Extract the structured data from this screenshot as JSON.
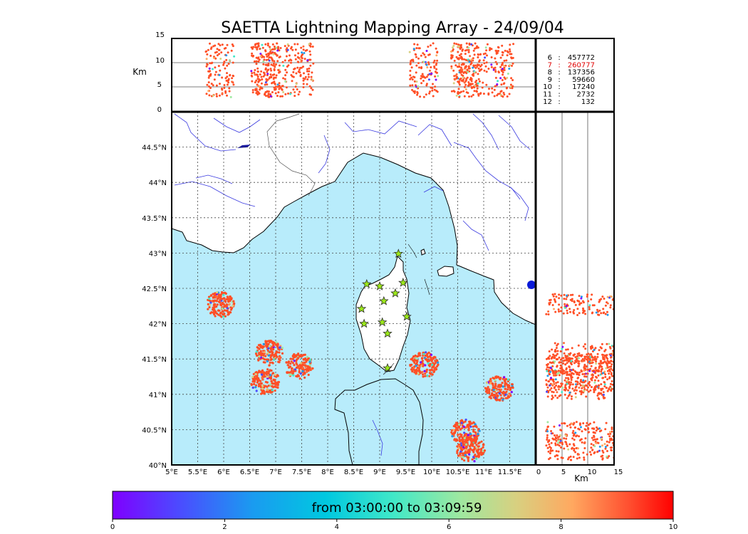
{
  "title": "SAETTA Lightning Mapping Array - 24/09/04",
  "colors": {
    "sea": "#b8ecfb",
    "land": "#ffffff",
    "river": "#3a3ae0",
    "coast": "#000000",
    "grid": "#555555",
    "station_fill": "#9be81a",
    "highlight_count": "#e00000",
    "dominant_source": "#ff4f26"
  },
  "chart_data": {
    "type": "scatter",
    "description_of_panels": [
      "altitude-vs-longitude",
      "plan-view-map",
      "altitude-vs-latitude"
    ],
    "top_panel": {
      "ylabel": "Km",
      "ylim": [
        0,
        15
      ],
      "yticks": [
        "0",
        "5",
        "10",
        "15"
      ],
      "reference_lines_km": [
        5,
        10
      ]
    },
    "map": {
      "lon_range": [
        5.0,
        12.0
      ],
      "lat_range": [
        40.0,
        45.0
      ],
      "xtick_labels": [
        "5°E",
        "5.5°E",
        "6°E",
        "6.5°E",
        "7°E",
        "7.5°E",
        "8°E",
        "8.5°E",
        "9°E",
        "9.5°E",
        "10°E",
        "10.5°E",
        "11°E",
        "11.5°E"
      ],
      "ytick_labels": [
        "40°N",
        "40.5°N",
        "41°N",
        "41.5°N",
        "42°N",
        "42.5°N",
        "43°N",
        "43.5°N",
        "44°N",
        "44.5°N"
      ],
      "grid": "dotted",
      "stations": [
        {
          "lon": 9.36,
          "lat": 42.99
        },
        {
          "lon": 8.75,
          "lat": 42.56
        },
        {
          "lon": 9.0,
          "lat": 42.53
        },
        {
          "lon": 9.45,
          "lat": 42.58
        },
        {
          "lon": 9.3,
          "lat": 42.43
        },
        {
          "lon": 9.08,
          "lat": 42.32
        },
        {
          "lon": 8.65,
          "lat": 42.21
        },
        {
          "lon": 9.52,
          "lat": 42.1
        },
        {
          "lon": 8.7,
          "lat": 42.0
        },
        {
          "lon": 9.05,
          "lat": 42.02
        },
        {
          "lon": 9.15,
          "lat": 41.86
        },
        {
          "lon": 9.15,
          "lat": 41.37
        }
      ],
      "storm_cells": [
        {
          "lon": 5.93,
          "lat": 42.27
        },
        {
          "lon": 6.88,
          "lat": 41.58
        },
        {
          "lon": 7.45,
          "lat": 41.4
        },
        {
          "lon": 9.85,
          "lat": 41.42
        },
        {
          "lon": 10.65,
          "lat": 40.46
        },
        {
          "lon": 11.3,
          "lat": 41.08
        },
        {
          "lon": 6.8,
          "lat": 41.18
        },
        {
          "lon": 10.75,
          "lat": 40.22
        }
      ]
    },
    "side_panel": {
      "xlabel": "Km",
      "xlim": [
        0,
        15
      ],
      "xticks": [
        "0",
        "5",
        "10",
        "15"
      ],
      "reference_lines_km": [
        5,
        10
      ]
    },
    "station_counts": [
      {
        "stations": "6",
        "count": "457772",
        "highlight": false
      },
      {
        "stations": "7",
        "count": "260777",
        "highlight": true
      },
      {
        "stations": "8",
        "count": "137356",
        "highlight": false
      },
      {
        "stations": "9",
        "count": "59660",
        "highlight": false
      },
      {
        "stations": "10",
        "count": "17240",
        "highlight": false
      },
      {
        "stations": "11",
        "count": "2732",
        "highlight": false
      },
      {
        "stations": "12",
        "count": "132",
        "highlight": false
      }
    ],
    "colorbar": {
      "label": "from 03:00:00 to 03:09:59",
      "range": [
        0,
        10
      ],
      "ticks": [
        "0",
        "2",
        "4",
        "6",
        "8",
        "10"
      ],
      "colormap": "rainbow"
    }
  }
}
